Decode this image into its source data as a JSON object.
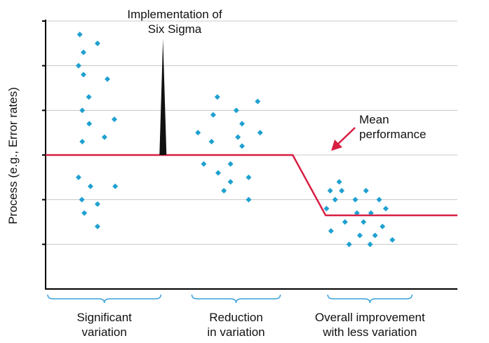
{
  "chart_data": {
    "type": "scatter",
    "title": "",
    "xlabel": "",
    "ylabel": "Process (e.g., Error rates)",
    "grid": true,
    "ylim": [
      0,
      6
    ],
    "yticks": [
      1,
      2,
      3,
      4,
      5,
      6
    ],
    "xlim": [
      0,
      100
    ],
    "colors": {
      "points": "#1ea0d0",
      "mean_line": "#d81e42",
      "grid": "#c8c8c8",
      "brace": "#3aa0d8",
      "marker_spike": "#111111"
    },
    "series": [
      {
        "points": [
          [
            8.3,
            5.7
          ],
          [
            9.2,
            5.3
          ],
          [
            8.0,
            5.0
          ],
          [
            9.2,
            4.8
          ],
          [
            10.5,
            4.3
          ],
          [
            8.9,
            4.0
          ],
          [
            12.6,
            5.5
          ],
          [
            15.0,
            4.7
          ],
          [
            10.6,
            3.7
          ],
          [
            14.3,
            3.4
          ],
          [
            16.7,
            3.8
          ],
          [
            8.9,
            3.3
          ],
          [
            8.0,
            2.5
          ],
          [
            10.9,
            2.3
          ],
          [
            16.9,
            2.3
          ],
          [
            8.8,
            2.0
          ],
          [
            9.4,
            1.7
          ],
          [
            12.6,
            1.9
          ],
          [
            12.6,
            1.4
          ],
          [
            37.0,
            3.5
          ],
          [
            40.3,
            3.3
          ],
          [
            40.7,
            3.9
          ],
          [
            41.7,
            4.3
          ],
          [
            38.4,
            2.8
          ],
          [
            41.9,
            2.6
          ],
          [
            43.3,
            2.2
          ],
          [
            44.9,
            2.4
          ],
          [
            44.9,
            2.8
          ],
          [
            46.3,
            4.0
          ],
          [
            46.7,
            3.4
          ],
          [
            47.7,
            3.7
          ],
          [
            47.7,
            3.2
          ],
          [
            49.3,
            2.5
          ],
          [
            49.3,
            2.0
          ],
          [
            51.5,
            4.2
          ],
          [
            52.1,
            3.5
          ],
          [
            68.2,
            1.8
          ],
          [
            69.1,
            2.2
          ],
          [
            69.3,
            1.3
          ],
          [
            70.3,
            2.0
          ],
          [
            71.3,
            2.4
          ],
          [
            71.9,
            2.2
          ],
          [
            72.7,
            1.5
          ],
          [
            73.7,
            1.0
          ],
          [
            75.2,
            2.0
          ],
          [
            75.6,
            1.7
          ],
          [
            76.3,
            1.2
          ],
          [
            77.2,
            1.5
          ],
          [
            77.8,
            2.2
          ],
          [
            78.8,
            1.0
          ],
          [
            79.0,
            1.7
          ],
          [
            80.0,
            1.2
          ],
          [
            81.0,
            2.0
          ],
          [
            81.8,
            1.4
          ],
          [
            82.6,
            1.8
          ],
          [
            84.2,
            1.1
          ]
        ]
      }
    ],
    "mean_line": {
      "label": "Mean performance",
      "points": [
        [
          0,
          3.0
        ],
        [
          60.0,
          3.0
        ],
        [
          68.0,
          1.65
        ],
        [
          100,
          1.65
        ]
      ]
    },
    "annotations": [
      {
        "id": "implementation",
        "lines": [
          "Implementation of",
          "Six Sigma"
        ],
        "x": 28.5
      },
      {
        "id": "mean",
        "lines": [
          "Mean",
          "performance"
        ]
      }
    ],
    "x_groups": [
      {
        "lines": [
          "Significant",
          "variation"
        ],
        "range": [
          0,
          28
        ]
      },
      {
        "lines": [
          "Reduction",
          "in variation"
        ],
        "range": [
          35,
          57
        ]
      },
      {
        "lines": [
          "Overall improvement",
          "with less variation"
        ],
        "range": [
          68,
          89
        ]
      }
    ]
  }
}
